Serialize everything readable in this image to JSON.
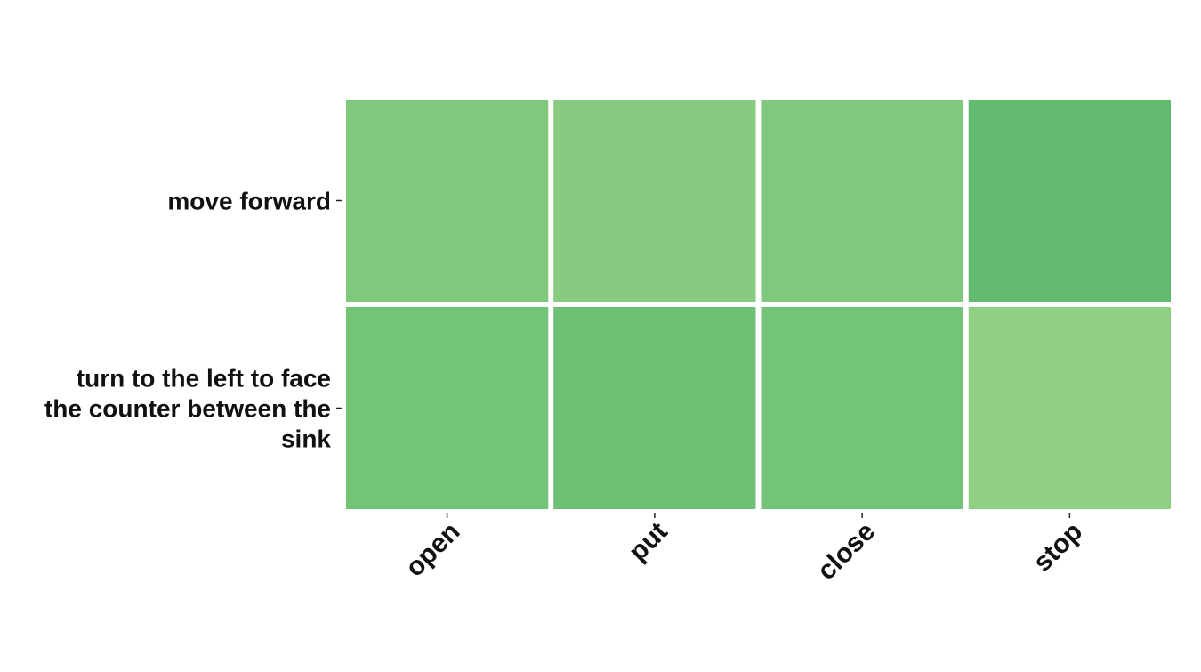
{
  "chart_data": {
    "type": "heatmap",
    "title": "",
    "xlabel": "",
    "ylabel": "",
    "x_categories": [
      "open",
      "put",
      "close",
      "stop"
    ],
    "y_categories": [
      "move forward",
      "turn to the left to face the counter between the sink"
    ],
    "y_tick_lines": [
      [
        "move forward"
      ],
      [
        "turn to the left to face",
        "the counter between the",
        "sink"
      ]
    ],
    "values": [
      [
        0.52,
        0.5,
        0.52,
        0.64
      ],
      [
        0.58,
        0.61,
        0.58,
        0.47
      ]
    ],
    "value_range": [
      0,
      1
    ],
    "colormap": {
      "low": "#e8f5e4",
      "high": "#1e8a34"
    },
    "cell_colors": [
      [
        "#80c87c",
        "#86cb80",
        "#80c87c",
        "#63bb70"
      ],
      [
        "#74c477",
        "#6ec174",
        "#74c477",
        "#8ecf82"
      ]
    ],
    "grid": false,
    "legend": "none"
  }
}
